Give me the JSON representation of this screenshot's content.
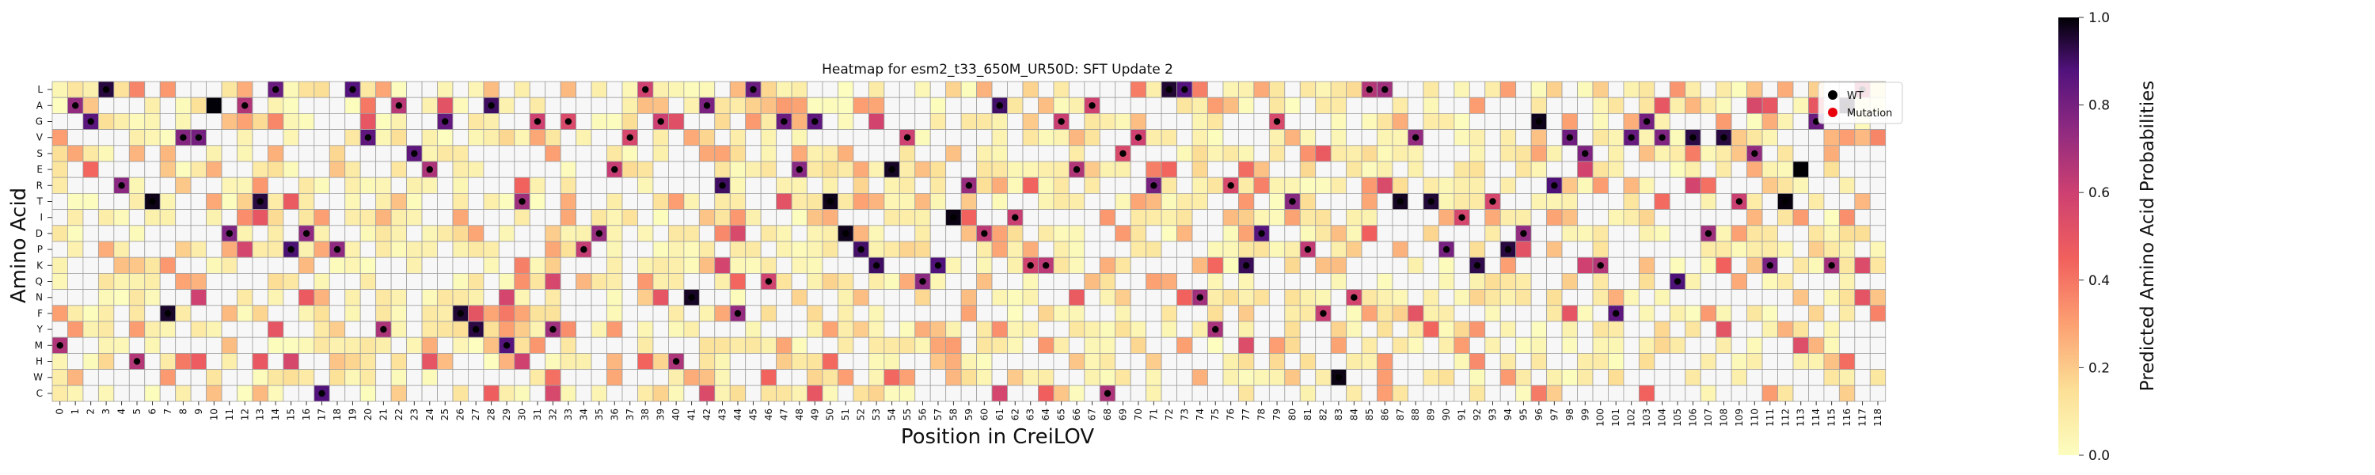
{
  "chart_data": {
    "type": "heatmap",
    "title": "Heatmap for esm2_t33_650M_UR50D: SFT Update 2",
    "xlabel": "Position in CreiLOV",
    "ylabel": "Amino Acid",
    "colorbar_label": "Predicted Amino Acid Probabilities",
    "colorbar_ticks": [
      "0.0",
      "0.2",
      "0.4",
      "0.6",
      "0.8",
      "1.0"
    ],
    "value_range": [
      0,
      1
    ],
    "colormap": "magma_r",
    "y_categories": [
      "L",
      "A",
      "G",
      "V",
      "S",
      "E",
      "R",
      "T",
      "I",
      "D",
      "P",
      "K",
      "Q",
      "N",
      "F",
      "Y",
      "M",
      "H",
      "W",
      "C"
    ],
    "x_categories": [
      0,
      1,
      2,
      3,
      4,
      5,
      6,
      7,
      8,
      9,
      10,
      11,
      12,
      13,
      14,
      15,
      16,
      17,
      18,
      19,
      20,
      21,
      22,
      23,
      24,
      25,
      26,
      27,
      28,
      29,
      30,
      31,
      32,
      33,
      34,
      35,
      36,
      37,
      38,
      39,
      40,
      41,
      42,
      43,
      44,
      45,
      46,
      47,
      48,
      49,
      50,
      51,
      52,
      53,
      54,
      55,
      56,
      57,
      58,
      59,
      60,
      61,
      62,
      63,
      64,
      65,
      66,
      67,
      68,
      69,
      70,
      71,
      72,
      73,
      74,
      75,
      76,
      77,
      78,
      79,
      80,
      81,
      82,
      83,
      84,
      85,
      86,
      87,
      88,
      89,
      90,
      91,
      92,
      93,
      94,
      95,
      96,
      97,
      98,
      99,
      100,
      101,
      102,
      103,
      104,
      105,
      106,
      107,
      108,
      109,
      110,
      111,
      112,
      113,
      114,
      115,
      116,
      117,
      118
    ],
    "wild_type_sequence": "MAGLRHTFVVADATLPDCPLVYASEGFYAMTGYGPDEVLGHNARFLQGEGTDPKEVQKIRDAIKKGEACSVRLLNYRKDGTPFWNLLTVTPIKTPDGRVSKFVGVQVDVTSKTEGKAL",
    "positions_with_wt_marker_missing": [
      10
    ],
    "legend": {
      "position": "top-right",
      "entries": [
        {
          "label": "WT",
          "color": "#000000"
        },
        {
          "label": "Mutation",
          "color": "#e8000b"
        }
      ]
    },
    "grid": true
  }
}
